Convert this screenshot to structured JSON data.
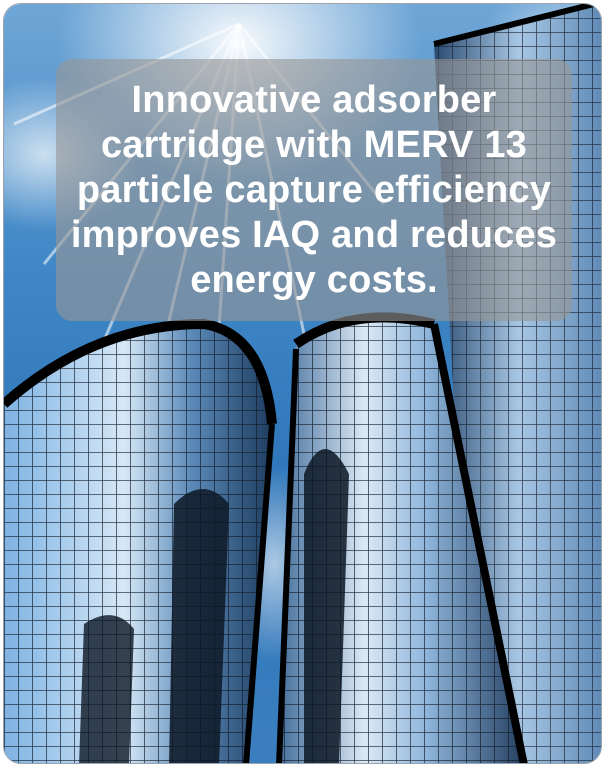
{
  "caption": {
    "text": "Innovative adsorber cartridge with MERV 13 particle capture efficiency improves IAQ and reduces energy costs."
  },
  "image": {
    "subject": "glass-skyscrapers-icon"
  },
  "colors": {
    "sky_top": "#6fa6d6",
    "sky_bottom": "#2e75b8",
    "glass_light": "#b9d3ea",
    "glass_dark": "#1d3550",
    "frame": "#000000",
    "caption_box": "#969696",
    "caption_text": "#ffffff"
  }
}
